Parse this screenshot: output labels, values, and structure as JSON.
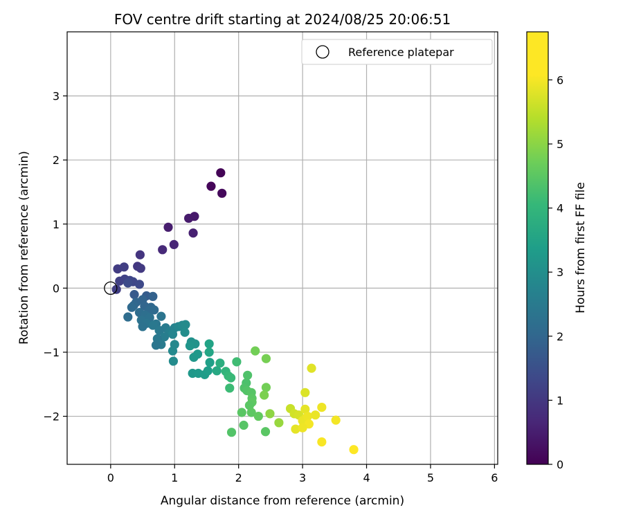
{
  "chart_data": {
    "type": "scatter",
    "title": "FOV centre drift starting at 2024/08/25 20:06:51",
    "xlabel": "Angular distance from reference (arcmin)",
    "ylabel": "Rotation from reference (arcmin)",
    "xlim": [
      -0.68,
      6.05
    ],
    "ylim": [
      -2.75,
      4.0
    ],
    "xticks": [
      0,
      1,
      2,
      3,
      4,
      5,
      6
    ],
    "yticks": [
      -2,
      -1,
      0,
      1,
      2,
      3
    ],
    "xtick_labels": [
      "0",
      "1",
      "2",
      "3",
      "4",
      "5",
      "6"
    ],
    "ytick_labels": [
      "−2",
      "−1",
      "0",
      "1",
      "2",
      "3"
    ],
    "grid": true,
    "legend": {
      "placement": "top-right",
      "entries": [
        "Reference platepar"
      ]
    },
    "reference": {
      "x": 0,
      "y": 0
    },
    "colorbar": {
      "label": "Hours from first FF file",
      "range": [
        0,
        6.75
      ],
      "ticks": [
        0,
        1,
        2,
        3,
        4,
        5,
        6
      ],
      "tick_labels": [
        "0",
        "1",
        "2",
        "3",
        "4",
        "5",
        "6"
      ],
      "colormap": "viridis"
    },
    "points": [
      {
        "x": 1.72,
        "y": 1.8,
        "t": 0.05
      },
      {
        "x": 1.57,
        "y": 1.59,
        "t": 0.1
      },
      {
        "x": 1.74,
        "y": 1.48,
        "t": 0.15
      },
      {
        "x": 0.9,
        "y": 0.95,
        "t": 0.55
      },
      {
        "x": 1.22,
        "y": 1.09,
        "t": 0.5
      },
      {
        "x": 1.31,
        "y": 1.12,
        "t": 0.45
      },
      {
        "x": 0.99,
        "y": 0.68,
        "t": 0.7
      },
      {
        "x": 1.29,
        "y": 0.86,
        "t": 0.6
      },
      {
        "x": 0.81,
        "y": 0.6,
        "t": 0.8
      },
      {
        "x": 0.46,
        "y": 0.52,
        "t": 1.05
      },
      {
        "x": 0.42,
        "y": 0.34,
        "t": 1.1
      },
      {
        "x": 0.47,
        "y": 0.31,
        "t": 1.15
      },
      {
        "x": 0.11,
        "y": 0.3,
        "t": 1.2
      },
      {
        "x": 0.21,
        "y": 0.33,
        "t": 1.25
      },
      {
        "x": 0.09,
        "y": -0.02,
        "t": 1.25
      },
      {
        "x": 0.14,
        "y": 0.11,
        "t": 1.3
      },
      {
        "x": 0.22,
        "y": 0.14,
        "t": 1.35
      },
      {
        "x": 0.3,
        "y": 0.12,
        "t": 1.4
      },
      {
        "x": 0.35,
        "y": 0.1,
        "t": 1.45
      },
      {
        "x": 0.45,
        "y": 0.06,
        "t": 1.5
      },
      {
        "x": 0.27,
        "y": 0.08,
        "t": 1.55
      },
      {
        "x": 0.37,
        "y": -0.1,
        "t": 1.9
      },
      {
        "x": 0.56,
        "y": -0.12,
        "t": 1.95
      },
      {
        "x": 0.66,
        "y": -0.13,
        "t": 2.1
      },
      {
        "x": 0.5,
        "y": -0.18,
        "t": 2.15
      },
      {
        "x": 0.4,
        "y": -0.22,
        "t": 2.2
      },
      {
        "x": 0.36,
        "y": -0.27,
        "t": 2.25
      },
      {
        "x": 0.33,
        "y": -0.3,
        "t": 2.3
      },
      {
        "x": 0.53,
        "y": -0.28,
        "t": 2.2
      },
      {
        "x": 0.63,
        "y": -0.3,
        "t": 2.25
      },
      {
        "x": 0.6,
        "y": -0.35,
        "t": 2.3
      },
      {
        "x": 0.68,
        "y": -0.34,
        "t": 2.35
      },
      {
        "x": 0.45,
        "y": -0.38,
        "t": 2.4
      },
      {
        "x": 0.54,
        "y": -0.42,
        "t": 2.45
      },
      {
        "x": 0.27,
        "y": -0.45,
        "t": 2.4
      },
      {
        "x": 0.61,
        "y": -0.46,
        "t": 2.5
      },
      {
        "x": 0.48,
        "y": -0.5,
        "t": 2.55
      },
      {
        "x": 0.79,
        "y": -0.44,
        "t": 2.6
      },
      {
        "x": 0.56,
        "y": -0.55,
        "t": 2.6
      },
      {
        "x": 0.71,
        "y": -0.56,
        "t": 2.65
      },
      {
        "x": 0.5,
        "y": -0.6,
        "t": 2.55
      },
      {
        "x": 0.66,
        "y": -0.58,
        "t": 2.7
      },
      {
        "x": 0.86,
        "y": -0.62,
        "t": 2.8
      },
      {
        "x": 0.76,
        "y": -0.66,
        "t": 2.75
      },
      {
        "x": 0.92,
        "y": -0.68,
        "t": 2.9
      },
      {
        "x": 1.0,
        "y": -0.62,
        "t": 3.0
      },
      {
        "x": 0.97,
        "y": -0.72,
        "t": 3.05
      },
      {
        "x": 0.84,
        "y": -0.76,
        "t": 2.85
      },
      {
        "x": 0.73,
        "y": -0.79,
        "t": 2.7
      },
      {
        "x": 0.79,
        "y": -0.88,
        "t": 2.8
      },
      {
        "x": 0.71,
        "y": -0.89,
        "t": 2.65
      },
      {
        "x": 1.06,
        "y": -0.6,
        "t": 3.1
      },
      {
        "x": 1.12,
        "y": -0.58,
        "t": 3.2
      },
      {
        "x": 1.17,
        "y": -0.57,
        "t": 3.25
      },
      {
        "x": 1.16,
        "y": -0.69,
        "t": 3.3
      },
      {
        "x": 1.0,
        "y": -0.88,
        "t": 3.15
      },
      {
        "x": 0.97,
        "y": -0.98,
        "t": 3.2
      },
      {
        "x": 0.98,
        "y": -1.14,
        "t": 3.25
      },
      {
        "x": 1.26,
        "y": -0.84,
        "t": 3.4
      },
      {
        "x": 1.32,
        "y": -0.87,
        "t": 3.45
      },
      {
        "x": 1.24,
        "y": -0.9,
        "t": 3.5
      },
      {
        "x": 1.3,
        "y": -1.08,
        "t": 3.55
      },
      {
        "x": 1.36,
        "y": -1.03,
        "t": 3.6
      },
      {
        "x": 1.28,
        "y": -1.33,
        "t": 3.6
      },
      {
        "x": 1.37,
        "y": -1.33,
        "t": 3.65
      },
      {
        "x": 1.47,
        "y": -1.35,
        "t": 3.7
      },
      {
        "x": 1.52,
        "y": -1.29,
        "t": 3.75
      },
      {
        "x": 1.55,
        "y": -1.16,
        "t": 3.8
      },
      {
        "x": 1.54,
        "y": -0.87,
        "t": 3.9
      },
      {
        "x": 1.54,
        "y": -1.0,
        "t": 3.95
      },
      {
        "x": 1.66,
        "y": -1.29,
        "t": 4.05
      },
      {
        "x": 1.71,
        "y": -1.17,
        "t": 4.2
      },
      {
        "x": 1.8,
        "y": -1.3,
        "t": 4.4
      },
      {
        "x": 1.84,
        "y": -1.37,
        "t": 4.5
      },
      {
        "x": 1.88,
        "y": -1.4,
        "t": 4.55
      },
      {
        "x": 1.97,
        "y": -1.15,
        "t": 4.65
      },
      {
        "x": 1.86,
        "y": -1.56,
        "t": 4.6
      },
      {
        "x": 2.12,
        "y": -1.48,
        "t": 4.8
      },
      {
        "x": 2.14,
        "y": -1.36,
        "t": 4.85
      },
      {
        "x": 2.09,
        "y": -1.56,
        "t": 4.85
      },
      {
        "x": 2.13,
        "y": -1.6,
        "t": 4.9
      },
      {
        "x": 2.2,
        "y": -1.63,
        "t": 4.95
      },
      {
        "x": 2.21,
        "y": -1.72,
        "t": 5.0
      },
      {
        "x": 2.21,
        "y": -1.78,
        "t": 5.05
      },
      {
        "x": 2.17,
        "y": -1.83,
        "t": 5.0
      },
      {
        "x": 2.26,
        "y": -0.98,
        "t": 5.3
      },
      {
        "x": 2.43,
        "y": -1.1,
        "t": 5.35
      },
      {
        "x": 2.43,
        "y": -1.55,
        "t": 5.3
      },
      {
        "x": 2.4,
        "y": -1.67,
        "t": 5.4
      },
      {
        "x": 2.05,
        "y": -1.94,
        "t": 5.0
      },
      {
        "x": 2.2,
        "y": -1.94,
        "t": 5.05
      },
      {
        "x": 2.31,
        "y": -2.0,
        "t": 5.1
      },
      {
        "x": 2.08,
        "y": -2.14,
        "t": 4.95
      },
      {
        "x": 1.89,
        "y": -2.25,
        "t": 4.9
      },
      {
        "x": 2.42,
        "y": -2.24,
        "t": 5.0
      },
      {
        "x": 2.49,
        "y": -1.96,
        "t": 5.6
      },
      {
        "x": 2.63,
        "y": -2.1,
        "t": 5.7
      },
      {
        "x": 2.81,
        "y": -1.88,
        "t": 6.2
      },
      {
        "x": 2.87,
        "y": -1.96,
        "t": 6.3
      },
      {
        "x": 2.94,
        "y": -1.98,
        "t": 6.35
      },
      {
        "x": 3.04,
        "y": -1.63,
        "t": 6.4
      },
      {
        "x": 3.14,
        "y": -1.25,
        "t": 6.45
      },
      {
        "x": 3.04,
        "y": -1.89,
        "t": 6.5
      },
      {
        "x": 3.05,
        "y": -2.03,
        "t": 6.55
      },
      {
        "x": 3.0,
        "y": -2.07,
        "t": 6.55
      },
      {
        "x": 3.08,
        "y": -2.0,
        "t": 6.6
      },
      {
        "x": 3.1,
        "y": -2.12,
        "t": 6.65
      },
      {
        "x": 2.89,
        "y": -2.2,
        "t": 6.5
      },
      {
        "x": 3.0,
        "y": -2.18,
        "t": 6.6
      },
      {
        "x": 3.2,
        "y": -1.98,
        "t": 6.55
      },
      {
        "x": 3.3,
        "y": -1.86,
        "t": 6.6
      },
      {
        "x": 3.52,
        "y": -2.06,
        "t": 6.65
      },
      {
        "x": 3.3,
        "y": -2.4,
        "t": 6.7
      },
      {
        "x": 3.8,
        "y": -2.52,
        "t": 6.75
      }
    ]
  }
}
